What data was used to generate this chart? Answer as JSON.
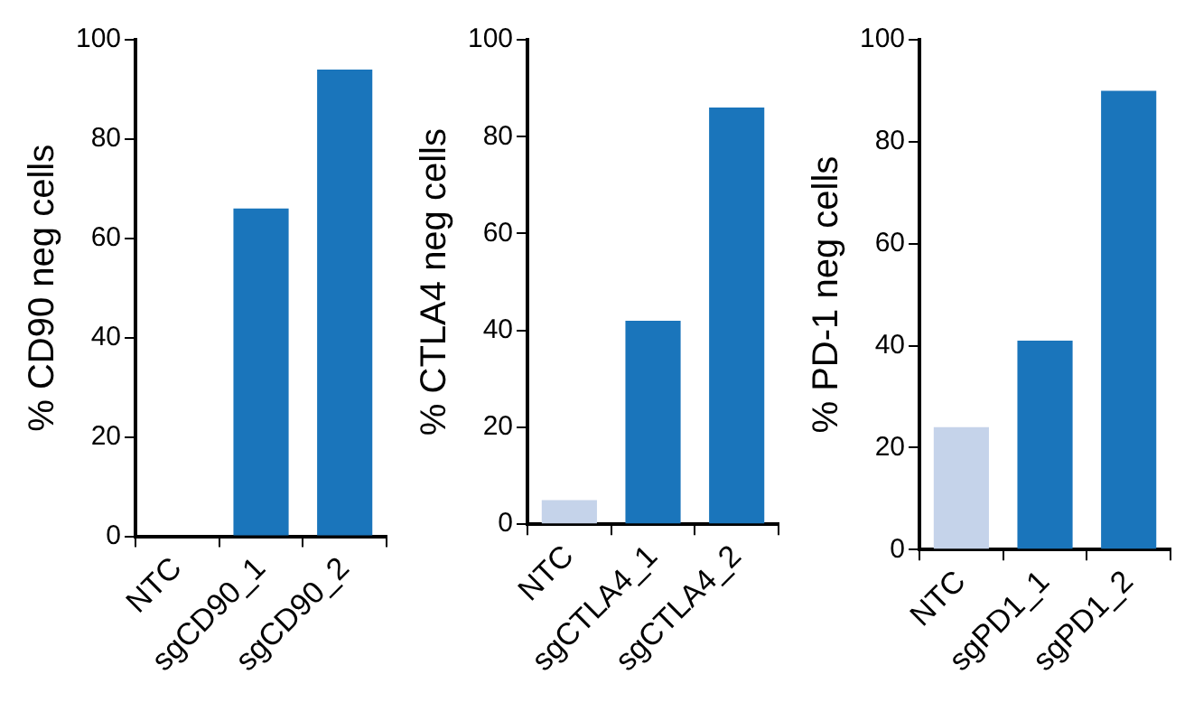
{
  "chart_data": [
    {
      "type": "bar",
      "ylabel": "% CD90 neg cells",
      "categories": [
        "NTC",
        "sgCD90_1",
        "sgCD90_2"
      ],
      "values": [
        0,
        66,
        94
      ],
      "colors": [
        "#c5d3ea",
        "#1a75bb",
        "#1a75bb"
      ],
      "ylim": [
        0,
        100
      ],
      "yticks": [
        0,
        20,
        40,
        60,
        80,
        100
      ],
      "grid": false,
      "legend": false
    },
    {
      "type": "bar",
      "ylabel": "% CTLA4 neg cells",
      "categories": [
        "NTC",
        "sgCTLA4_1",
        "sgCTLA4_2"
      ],
      "values": [
        5,
        42,
        86
      ],
      "colors": [
        "#c5d3ea",
        "#1a75bb",
        "#1a75bb"
      ],
      "ylim": [
        0,
        100
      ],
      "yticks": [
        0,
        20,
        40,
        60,
        80,
        100
      ],
      "grid": false,
      "legend": false
    },
    {
      "type": "bar",
      "ylabel": "% PD-1 neg cells",
      "categories": [
        "NTC",
        "sgPD1_1",
        "sgPD1_2"
      ],
      "values": [
        24,
        41,
        90
      ],
      "colors": [
        "#c5d3ea",
        "#1a75bb",
        "#1a75bb"
      ],
      "ylim": [
        0,
        100
      ],
      "yticks": [
        0,
        20,
        40,
        60,
        80,
        100
      ],
      "grid": false,
      "legend": false
    }
  ]
}
